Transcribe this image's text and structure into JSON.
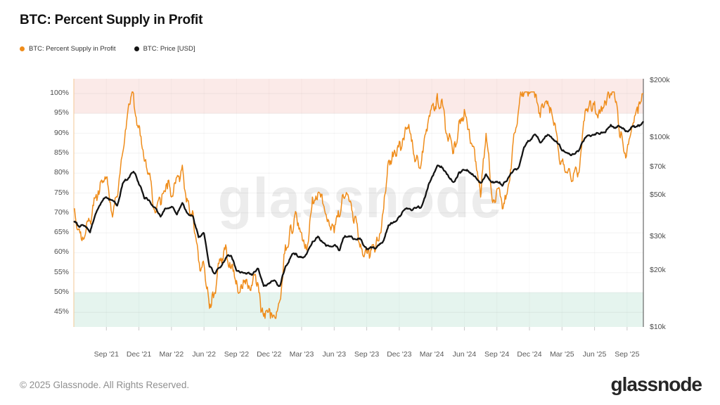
{
  "header": {
    "title": "BTC: Percent Supply in Profit"
  },
  "legend": {
    "items": [
      {
        "label": "BTC: Percent Supply in Profit",
        "color": "#ef8c1a"
      },
      {
        "label": "BTC: Price [USD]",
        "color": "#141414"
      }
    ]
  },
  "watermark": {
    "text": "glassnode"
  },
  "footer": {
    "copyright": "© 2025 Glassnode. All Rights Reserved.",
    "brand": "glassnode"
  },
  "style": {
    "accent_orange": "#ef8c1a",
    "price_black": "#141414",
    "band_high_pink": "#fbeae8",
    "band_low_green": "#e5f4ee",
    "grid_line": "rgba(0,0,0,0.05)",
    "grid_line_vertical": "rgba(0,0,0,0.028)",
    "left_axis_line": "#f3c795",
    "right_axis_line": "#4a4a4a",
    "x_tick_mark": "#c9c9c9"
  },
  "chart_data": {
    "type": "line",
    "title": "BTC: Percent Supply in Profit",
    "grid": true,
    "legend_position": "top-left",
    "x_axis": {
      "start_month": "Jun 2021",
      "end_month": "Oct 2025",
      "sample_interval_months": 0.5,
      "first_tick_month_offset": 3,
      "tick_every_months": 3,
      "tick_labels": [
        "Sep '21",
        "Dec '21",
        "Mar '22",
        "Jun '22",
        "Sep '22",
        "Dec '22",
        "Mar '23",
        "Jun '23",
        "Sep '23",
        "Dec '23",
        "Mar '24",
        "Jun '24",
        "Sep '24",
        "Dec '24",
        "Mar '25",
        "Jun '25",
        "Sep '25"
      ]
    },
    "left_axis": {
      "name": "Percent Supply in Profit",
      "unit": "%",
      "ticks": [
        100,
        95,
        90,
        85,
        80,
        75,
        70,
        65,
        60,
        55,
        50,
        45
      ],
      "plot_range": [
        41.3,
        103.7
      ]
    },
    "right_axis": {
      "name": "BTC Price",
      "unit": "USD",
      "scale": "log",
      "plot_range": [
        10000,
        200000
      ],
      "ticks": [
        {
          "label": "$200k",
          "value": 200000
        },
        {
          "label": "$100k",
          "value": 100000
        },
        {
          "label": "$70k",
          "value": 70000
        },
        {
          "label": "$50k",
          "value": 50000
        },
        {
          "label": "$30k",
          "value": 30000
        },
        {
          "label": "$20k",
          "value": 20000
        },
        {
          "label": "$10k",
          "value": 10000
        }
      ]
    },
    "bands": [
      {
        "name": "high-profit-zone",
        "axis": "left",
        "range_pct": [
          95,
          103.7
        ],
        "color": "#fbeae8"
      },
      {
        "name": "low-profit-zone",
        "axis": "left",
        "range_pct": [
          41.3,
          50
        ],
        "color": "#e5f4ee"
      }
    ],
    "series": [
      {
        "name": "BTC: Percent Supply in Profit",
        "axis": "left",
        "unit": "%",
        "color": "#ef8c1a",
        "stroke_width": 1.5,
        "values": [
          71,
          66,
          64,
          68,
          74,
          78,
          79,
          70,
          74,
          85,
          96,
          100,
          92,
          83,
          80,
          70,
          72,
          77,
          74,
          79,
          82,
          73,
          70,
          58,
          57,
          46,
          50,
          58,
          62,
          56,
          53,
          51,
          52,
          53,
          52,
          44,
          46,
          44,
          48,
          62,
          67,
          70,
          65,
          61,
          74,
          75,
          72,
          68,
          65,
          69,
          74,
          73,
          69,
          61,
          60,
          62,
          63,
          70,
          83,
          85,
          88,
          90,
          90,
          83,
          82,
          91,
          97,
          100,
          97,
          88,
          85,
          93,
          96,
          89,
          83,
          74,
          90,
          75,
          76,
          71,
          76,
          88,
          96,
          100,
          100,
          99,
          94,
          98,
          96,
          90,
          83,
          80,
          78,
          80,
          93,
          97,
          98,
          95,
          98,
          100,
          98,
          90,
          86,
          92,
          95,
          100
        ]
      },
      {
        "name": "BTC: Price [USD]",
        "axis": "right",
        "unit": "USD",
        "color": "#141414",
        "stroke_width": 2.3,
        "values": [
          36500,
          34000,
          34500,
          31800,
          39800,
          45500,
          48800,
          47200,
          44000,
          57500,
          61000,
          66500,
          57000,
          48000,
          46500,
          43000,
          38500,
          42500,
          43500,
          39500,
          45500,
          40000,
          38500,
          30000,
          31500,
          21000,
          19300,
          20800,
          23300,
          24000,
          20000,
          19700,
          19500,
          19200,
          20500,
          16600,
          17100,
          17800,
          16600,
          21000,
          23700,
          24600,
          23500,
          24800,
          28500,
          30300,
          28100,
          27000,
          27200,
          25600,
          30500,
          30300,
          29200,
          29100,
          25900,
          26500,
          27000,
          28500,
          34700,
          36200,
          38700,
          42000,
          42300,
          42800,
          43000,
          52000,
          62000,
          71500,
          69600,
          63500,
          58500,
          66000,
          67700,
          65500,
          62800,
          58000,
          64500,
          58500,
          59000,
          56000,
          61000,
          67000,
          70000,
          89500,
          96500,
          104500,
          94500,
          102500,
          101500,
          96000,
          86000,
          83500,
          82500,
          85000,
          96500,
          103500,
          104500,
          105000,
          107000,
          117500,
          114000,
          113000,
          108500,
          115500,
          117000,
          122500
        ]
      }
    ],
    "render_texture": {
      "seed": 1337,
      "noise_amp_pct": [
        3.2,
        1.9,
        1.1
      ],
      "noise_amp_log_decades": [
        0.01,
        0.006,
        0.0035
      ]
    }
  }
}
